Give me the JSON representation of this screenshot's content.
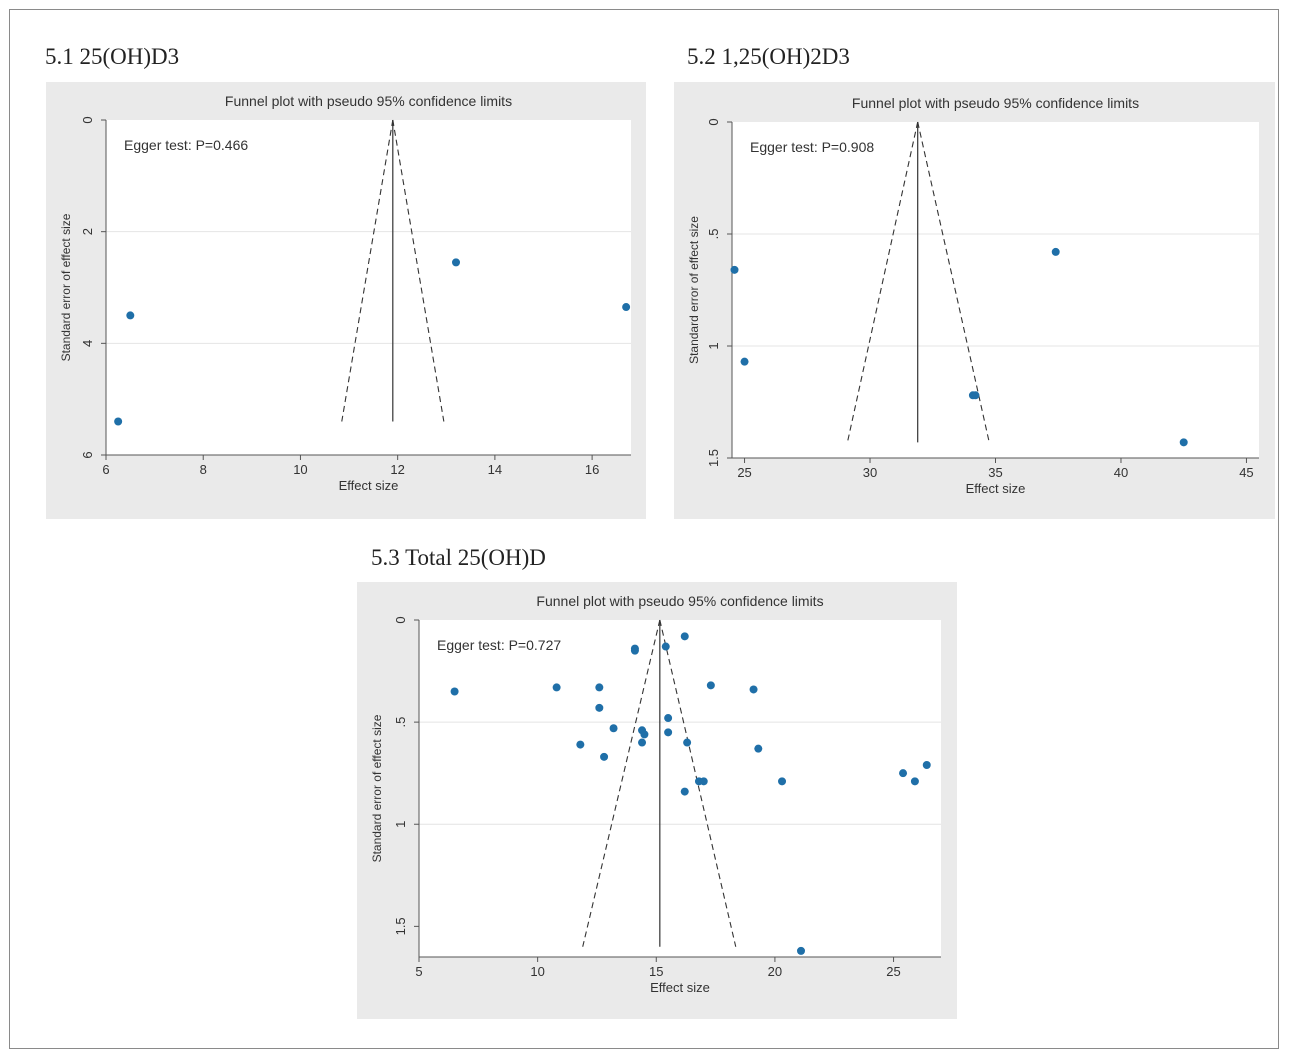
{
  "panels": [
    {
      "label": "5.1 25(OH)D3"
    },
    {
      "label": "5.2 1,25(OH)2D3"
    },
    {
      "label": "5.3 Total 25(OH)D"
    }
  ],
  "chart_data": [
    {
      "type": "scatter",
      "title": "Funnel plot with pseudo 95% confidence limits",
      "xlabel": "Effect size",
      "ylabel": "Standard error of effect size",
      "annotation": "Egger test: P=0.466",
      "xlim": [
        6,
        16.8
      ],
      "ylim": [
        0,
        6
      ],
      "y_reversed": true,
      "xticks": [
        6,
        8,
        10,
        12,
        14,
        16
      ],
      "yticks": [
        0,
        2,
        4,
        6
      ],
      "pooled_effect": 11.9,
      "funnel_base": {
        "se": 5.4,
        "left": 10.85,
        "right": 12.95
      },
      "points": [
        {
          "x": 6.25,
          "y": 5.4
        },
        {
          "x": 6.5,
          "y": 3.5
        },
        {
          "x": 13.2,
          "y": 2.55
        },
        {
          "x": 16.7,
          "y": 3.35
        }
      ]
    },
    {
      "type": "scatter",
      "title": "Funnel plot with pseudo 95% confidence limits",
      "xlabel": "Effect size",
      "ylabel": "Standard error of effect size",
      "annotation": "Egger test: P=0.908",
      "xlim": [
        24.5,
        45.5
      ],
      "ylim": [
        0,
        1.5
      ],
      "y_reversed": true,
      "xticks": [
        25,
        30,
        35,
        40,
        45
      ],
      "yticks": [
        0,
        0.5,
        1,
        1.5
      ],
      "ytick_labels": [
        "0",
        ".5",
        "1",
        "1.5"
      ],
      "pooled_effect": 31.9,
      "funnel_base": {
        "se": 1.43,
        "left": 29.1,
        "right": 34.75
      },
      "points": [
        {
          "x": 24.6,
          "y": 0.66
        },
        {
          "x": 25.0,
          "y": 1.07
        },
        {
          "x": 34.1,
          "y": 1.22
        },
        {
          "x": 34.2,
          "y": 1.22
        },
        {
          "x": 37.4,
          "y": 0.58
        },
        {
          "x": 42.5,
          "y": 1.43
        }
      ]
    },
    {
      "type": "scatter",
      "title": "Funnel plot with pseudo 95% confidence limits",
      "xlabel": "Effect size",
      "ylabel": "Standard error of effect size",
      "annotation": "Egger test: P=0.727",
      "xlim": [
        5,
        27
      ],
      "ylim": [
        0,
        1.65
      ],
      "y_reversed": true,
      "xticks": [
        5,
        10,
        15,
        20,
        25
      ],
      "yticks": [
        0,
        0.5,
        1,
        1.5
      ],
      "ytick_labels": [
        "0",
        ".5",
        "1",
        "1.5"
      ],
      "pooled_effect": 15.15,
      "funnel_base": {
        "se": 1.6,
        "left": 11.9,
        "right": 18.35
      },
      "points": [
        {
          "x": 6.5,
          "y": 0.35
        },
        {
          "x": 10.8,
          "y": 0.33
        },
        {
          "x": 11.8,
          "y": 0.61
        },
        {
          "x": 12.6,
          "y": 0.33
        },
        {
          "x": 12.6,
          "y": 0.43
        },
        {
          "x": 12.8,
          "y": 0.67
        },
        {
          "x": 13.2,
          "y": 0.53
        },
        {
          "x": 14.1,
          "y": 0.14
        },
        {
          "x": 14.1,
          "y": 0.15
        },
        {
          "x": 14.4,
          "y": 0.54
        },
        {
          "x": 14.5,
          "y": 0.56
        },
        {
          "x": 14.4,
          "y": 0.6
        },
        {
          "x": 15.4,
          "y": 0.13
        },
        {
          "x": 15.5,
          "y": 0.48
        },
        {
          "x": 15.5,
          "y": 0.55
        },
        {
          "x": 16.2,
          "y": 0.08
        },
        {
          "x": 16.3,
          "y": 0.6
        },
        {
          "x": 16.2,
          "y": 0.84
        },
        {
          "x": 16.8,
          "y": 0.79
        },
        {
          "x": 17.0,
          "y": 0.79
        },
        {
          "x": 17.3,
          "y": 0.32
        },
        {
          "x": 19.1,
          "y": 0.34
        },
        {
          "x": 19.3,
          "y": 0.63
        },
        {
          "x": 20.3,
          "y": 0.79
        },
        {
          "x": 21.1,
          "y": 1.62
        },
        {
          "x": 25.4,
          "y": 0.75
        },
        {
          "x": 25.9,
          "y": 0.79
        },
        {
          "x": 26.4,
          "y": 0.71
        }
      ]
    }
  ]
}
